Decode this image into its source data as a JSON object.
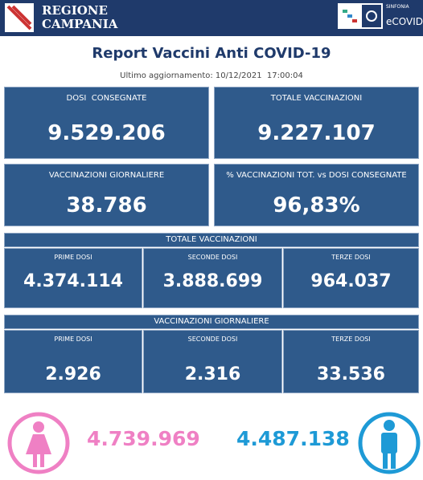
{
  "header": {
    "logo_line1": "REGIONE",
    "logo_line2": "CAMPANIA",
    "partner_small": "SINFONIA",
    "partner": "eCOVID"
  },
  "title": "Report Vaccini Anti COVID-19",
  "subtitle": "Ultimo aggiornamento: 10/12/2021  17:00:04",
  "kpis": [
    {
      "label": "DOSI  CONSEGNATE",
      "value": "9.529.206"
    },
    {
      "label": "TOTALE VACCINAZIONI",
      "value": "9.227.107"
    },
    {
      "label": "VACCINAZIONI GIORNALIERE",
      "value": "38.786"
    },
    {
      "label": "% VACCINAZIONI TOT. vs DOSI CONSEGNATE",
      "value": "96,83%"
    }
  ],
  "sections": [
    {
      "title": "TOTALE VACCINAZIONI",
      "items": [
        {
          "label": "PRIME DOSI",
          "value": "4.374.114"
        },
        {
          "label": "SECONDE DOSI",
          "value": "3.888.699"
        },
        {
          "label": "TERZE DOSI",
          "value": "964.037"
        }
      ]
    },
    {
      "title": "VACCINAZIONI GIORNALIERE",
      "items": [
        {
          "label": "PRIME DOSI",
          "value": "2.926"
        },
        {
          "label": "SECONDE DOSI",
          "value": "2.316"
        },
        {
          "label": "TERZE DOSI",
          "value": "33.536"
        }
      ]
    }
  ],
  "gender": {
    "female": "4.739.969",
    "male": "4.487.138"
  }
}
